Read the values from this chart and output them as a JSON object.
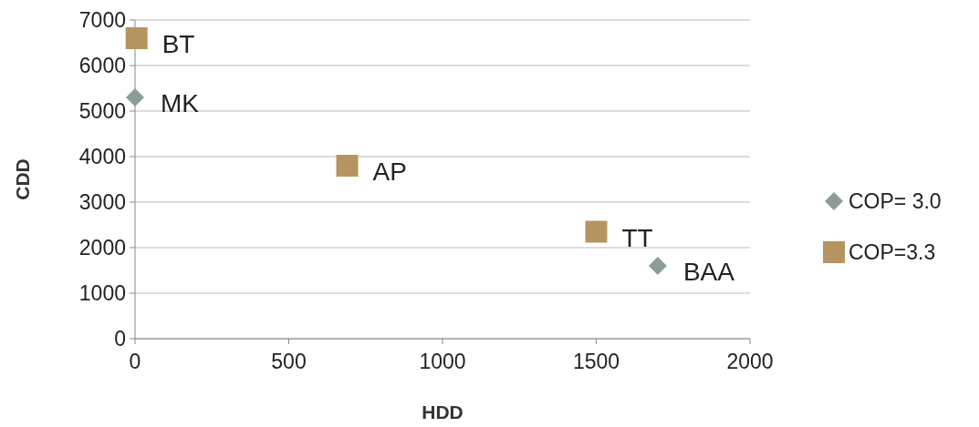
{
  "chart_data": {
    "type": "scatter",
    "xlabel": "HDD",
    "ylabel": "CDD",
    "series": [
      {
        "name": "COP= 3.0",
        "color": "#8c9e94",
        "marker": "diamond",
        "x": [
          0,
          1700
        ],
        "values": [
          5300,
          1600
        ]
      },
      {
        "name": "COP=3.3",
        "color": "#b5955f",
        "marker": "square",
        "x": [
          5,
          690,
          1500
        ],
        "values": [
          6600,
          3800,
          2350
        ]
      }
    ],
    "annotations": [
      {
        "text": "BT",
        "x": 5,
        "y": 6600
      },
      {
        "text": "MK",
        "x": 0,
        "y": 5300
      },
      {
        "text": "AP",
        "x": 690,
        "y": 3800
      },
      {
        "text": "TT",
        "x": 1500,
        "y": 2350
      },
      {
        "text": "BAA",
        "x": 1700,
        "y": 1600
      }
    ],
    "xlim": [
      0,
      2000
    ],
    "xticks": [
      0,
      500,
      1000,
      1500,
      2000
    ],
    "ylim": [
      0,
      7000
    ],
    "yticks": [
      0,
      1000,
      2000,
      3000,
      4000,
      5000,
      6000,
      7000
    ],
    "grid": "y",
    "legend": "right"
  }
}
